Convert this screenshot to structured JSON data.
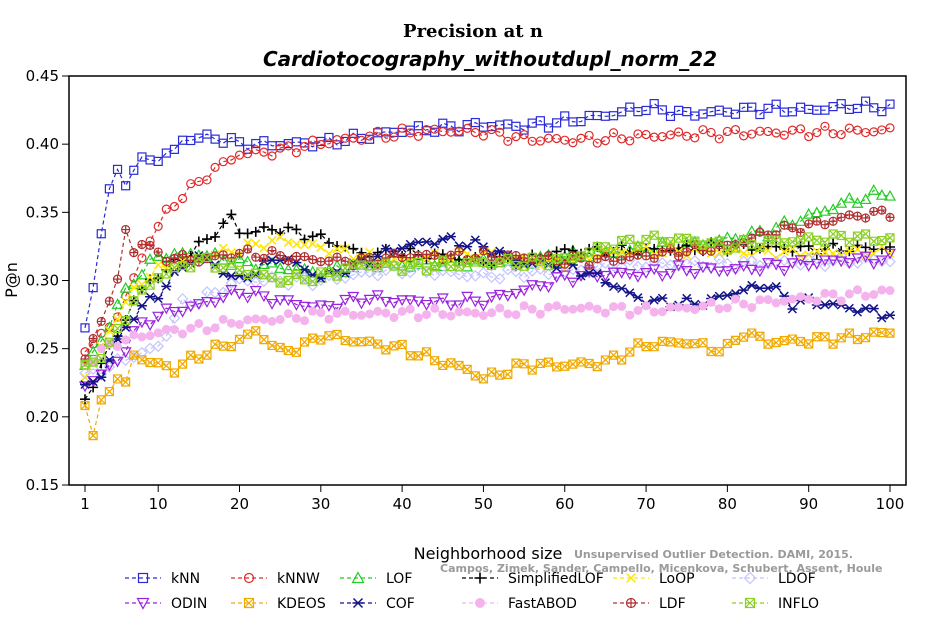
{
  "chart_data": {
    "type": "line",
    "title": "Precision at n",
    "subtitle": "Cardiotocography_withoutdupl_norm_22",
    "xlabel": "Neighborhood size",
    "ylabel": "P@n",
    "xlim": [
      1,
      100
    ],
    "ylim": [
      0.15,
      0.45
    ],
    "xticks": [
      1,
      10,
      20,
      30,
      40,
      50,
      60,
      70,
      80,
      90,
      100
    ],
    "yticks": [
      "0.15",
      "0.20",
      "0.25",
      "0.30",
      "0.35",
      "0.40",
      "0.45"
    ],
    "grid": false,
    "legend_position": "bottom",
    "watermark": [
      "Unsupervised Outlier Detection. DAMI, 2015.",
      "Campos, Zimek, Sander, Campello, Micenkova, Schubert, Assent, Houle"
    ],
    "x_step": 1,
    "series": [
      {
        "name": "kNN",
        "color": "#2a2ad6",
        "marker": "square",
        "keys": [
          [
            1,
            0.264
          ],
          [
            2,
            0.294
          ],
          [
            3,
            0.337
          ],
          [
            4,
            0.367
          ],
          [
            5,
            0.378
          ],
          [
            6,
            0.372
          ],
          [
            7,
            0.383
          ],
          [
            8,
            0.387
          ],
          [
            10,
            0.39
          ],
          [
            12,
            0.395
          ],
          [
            13,
            0.403
          ],
          [
            15,
            0.405
          ],
          [
            18,
            0.404
          ],
          [
            20,
            0.4
          ],
          [
            25,
            0.4
          ],
          [
            30,
            0.401
          ],
          [
            35,
            0.405
          ],
          [
            40,
            0.41
          ],
          [
            45,
            0.412
          ],
          [
            50,
            0.414
          ],
          [
            55,
            0.413
          ],
          [
            60,
            0.417
          ],
          [
            65,
            0.421
          ],
          [
            70,
            0.427
          ],
          [
            75,
            0.422
          ],
          [
            80,
            0.424
          ],
          [
            85,
            0.426
          ],
          [
            90,
            0.425
          ],
          [
            95,
            0.428
          ],
          [
            100,
            0.427
          ]
        ]
      },
      {
        "name": "kNNW",
        "color": "#e02b2b",
        "marker": "circle",
        "keys": [
          [
            1,
            0.251
          ],
          [
            3,
            0.258
          ],
          [
            5,
            0.275
          ],
          [
            7,
            0.301
          ],
          [
            9,
            0.331
          ],
          [
            11,
            0.349
          ],
          [
            13,
            0.363
          ],
          [
            15,
            0.372
          ],
          [
            17,
            0.382
          ],
          [
            19,
            0.389
          ],
          [
            20,
            0.393
          ],
          [
            25,
            0.395
          ],
          [
            30,
            0.401
          ],
          [
            35,
            0.405
          ],
          [
            40,
            0.408
          ],
          [
            45,
            0.41
          ],
          [
            50,
            0.409
          ],
          [
            55,
            0.404
          ],
          [
            60,
            0.403
          ],
          [
            65,
            0.404
          ],
          [
            70,
            0.406
          ],
          [
            80,
            0.408
          ],
          [
            90,
            0.409
          ],
          [
            100,
            0.41
          ]
        ]
      },
      {
        "name": "LOF",
        "color": "#22cc22",
        "marker": "triangle-up",
        "keys": [
          [
            1,
            0.238
          ],
          [
            3,
            0.255
          ],
          [
            5,
            0.282
          ],
          [
            7,
            0.3
          ],
          [
            10,
            0.318
          ],
          [
            15,
            0.32
          ],
          [
            20,
            0.313
          ],
          [
            25,
            0.31
          ],
          [
            30,
            0.305
          ],
          [
            35,
            0.312
          ],
          [
            40,
            0.311
          ],
          [
            45,
            0.313
          ],
          [
            50,
            0.314
          ],
          [
            55,
            0.314
          ],
          [
            60,
            0.318
          ],
          [
            65,
            0.32
          ],
          [
            70,
            0.323
          ],
          [
            75,
            0.326
          ],
          [
            80,
            0.33
          ],
          [
            85,
            0.336
          ],
          [
            90,
            0.347
          ],
          [
            95,
            0.358
          ],
          [
            100,
            0.365
          ]
        ]
      },
      {
        "name": "SimplifiedLOF",
        "color": "#000000",
        "marker": "plus",
        "keys": [
          [
            1,
            0.21
          ],
          [
            3,
            0.24
          ],
          [
            5,
            0.26
          ],
          [
            7,
            0.285
          ],
          [
            9,
            0.3
          ],
          [
            12,
            0.312
          ],
          [
            15,
            0.325
          ],
          [
            17,
            0.335
          ],
          [
            19,
            0.347
          ],
          [
            20,
            0.335
          ],
          [
            25,
            0.338
          ],
          [
            30,
            0.331
          ],
          [
            35,
            0.32
          ],
          [
            40,
            0.32
          ],
          [
            45,
            0.318
          ],
          [
            50,
            0.314
          ],
          [
            55,
            0.315
          ],
          [
            60,
            0.322
          ],
          [
            65,
            0.322
          ],
          [
            70,
            0.322
          ],
          [
            80,
            0.325
          ],
          [
            90,
            0.323
          ],
          [
            100,
            0.324
          ]
        ]
      },
      {
        "name": "LoOP",
        "color": "#ffe600",
        "marker": "x",
        "keys": [
          [
            1,
            0.23
          ],
          [
            3,
            0.25
          ],
          [
            5,
            0.275
          ],
          [
            8,
            0.3
          ],
          [
            10,
            0.308
          ],
          [
            15,
            0.317
          ],
          [
            20,
            0.323
          ],
          [
            25,
            0.33
          ],
          [
            30,
            0.324
          ],
          [
            35,
            0.318
          ],
          [
            40,
            0.314
          ],
          [
            45,
            0.318
          ],
          [
            50,
            0.32
          ],
          [
            55,
            0.315
          ],
          [
            60,
            0.312
          ],
          [
            65,
            0.32
          ],
          [
            70,
            0.322
          ],
          [
            80,
            0.321
          ],
          [
            90,
            0.32
          ],
          [
            100,
            0.321
          ]
        ]
      },
      {
        "name": "LDOF",
        "color": "#c4c4ff",
        "marker": "diamond",
        "keys": [
          [
            1,
            0.23
          ],
          [
            4,
            0.237
          ],
          [
            7,
            0.245
          ],
          [
            10,
            0.251
          ],
          [
            13,
            0.283
          ],
          [
            15,
            0.285
          ],
          [
            20,
            0.3
          ],
          [
            25,
            0.3
          ],
          [
            30,
            0.3
          ],
          [
            35,
            0.305
          ],
          [
            40,
            0.308
          ],
          [
            45,
            0.306
          ],
          [
            50,
            0.303
          ],
          [
            55,
            0.306
          ],
          [
            60,
            0.306
          ],
          [
            65,
            0.31
          ],
          [
            70,
            0.312
          ],
          [
            80,
            0.312
          ],
          [
            90,
            0.314
          ],
          [
            100,
            0.315
          ]
        ]
      },
      {
        "name": "ODIN",
        "color": "#9922dd",
        "marker": "triangle-down",
        "keys": [
          [
            1,
            0.223
          ],
          [
            3,
            0.232
          ],
          [
            5,
            0.24
          ],
          [
            7,
            0.262
          ],
          [
            10,
            0.275
          ],
          [
            15,
            0.282
          ],
          [
            20,
            0.292
          ],
          [
            25,
            0.285
          ],
          [
            30,
            0.28
          ],
          [
            35,
            0.287
          ],
          [
            40,
            0.285
          ],
          [
            45,
            0.284
          ],
          [
            50,
            0.285
          ],
          [
            55,
            0.293
          ],
          [
            60,
            0.302
          ],
          [
            65,
            0.305
          ],
          [
            70,
            0.305
          ],
          [
            75,
            0.308
          ],
          [
            80,
            0.308
          ],
          [
            85,
            0.31
          ],
          [
            90,
            0.313
          ],
          [
            95,
            0.315
          ],
          [
            100,
            0.316
          ]
        ]
      },
      {
        "name": "KDEOS",
        "color": "#f0aa00",
        "marker": "square-x",
        "keys": [
          [
            1,
            0.212
          ],
          [
            2,
            0.184
          ],
          [
            3,
            0.21
          ],
          [
            4,
            0.222
          ],
          [
            5,
            0.228
          ],
          [
            6,
            0.223
          ],
          [
            7,
            0.246
          ],
          [
            9,
            0.24
          ],
          [
            12,
            0.235
          ],
          [
            15,
            0.245
          ],
          [
            18,
            0.252
          ],
          [
            20,
            0.256
          ],
          [
            22,
            0.263
          ],
          [
            25,
            0.248
          ],
          [
            28,
            0.252
          ],
          [
            30,
            0.26
          ],
          [
            35,
            0.255
          ],
          [
            40,
            0.25
          ],
          [
            45,
            0.24
          ],
          [
            48,
            0.235
          ],
          [
            50,
            0.228
          ],
          [
            52,
            0.232
          ],
          [
            55,
            0.238
          ],
          [
            60,
            0.238
          ],
          [
            65,
            0.24
          ],
          [
            68,
            0.248
          ],
          [
            70,
            0.253
          ],
          [
            75,
            0.255
          ],
          [
            78,
            0.25
          ],
          [
            80,
            0.25
          ],
          [
            82,
            0.262
          ],
          [
            85,
            0.255
          ],
          [
            90,
            0.256
          ],
          [
            95,
            0.258
          ],
          [
            100,
            0.262
          ]
        ]
      },
      {
        "name": "COF",
        "color": "#141488",
        "marker": "asterisk",
        "keys": [
          [
            1,
            0.222
          ],
          [
            3,
            0.23
          ],
          [
            5,
            0.255
          ],
          [
            7,
            0.275
          ],
          [
            10,
            0.29
          ],
          [
            13,
            0.31
          ],
          [
            15,
            0.318
          ],
          [
            20,
            0.3
          ],
          [
            25,
            0.318
          ],
          [
            30,
            0.302
          ],
          [
            35,
            0.313
          ],
          [
            40,
            0.325
          ],
          [
            45,
            0.33
          ],
          [
            50,
            0.325
          ],
          [
            55,
            0.313
          ],
          [
            60,
            0.312
          ],
          [
            65,
            0.3
          ],
          [
            68,
            0.29
          ],
          [
            70,
            0.285
          ],
          [
            75,
            0.283
          ],
          [
            78,
            0.285
          ],
          [
            80,
            0.29
          ],
          [
            85,
            0.297
          ],
          [
            88,
            0.283
          ],
          [
            90,
            0.285
          ],
          [
            95,
            0.28
          ],
          [
            100,
            0.275
          ]
        ]
      },
      {
        "name": "FastABOD",
        "color": "#f5b3ee",
        "marker": "circle-filled",
        "keys": [
          [
            1,
            0.24
          ],
          [
            5,
            0.255
          ],
          [
            10,
            0.262
          ],
          [
            15,
            0.265
          ],
          [
            20,
            0.27
          ],
          [
            25,
            0.272
          ],
          [
            30,
            0.275
          ],
          [
            40,
            0.276
          ],
          [
            50,
            0.276
          ],
          [
            60,
            0.28
          ],
          [
            70,
            0.278
          ],
          [
            80,
            0.282
          ],
          [
            90,
            0.287
          ],
          [
            100,
            0.292
          ]
        ]
      },
      {
        "name": "LDF",
        "color": "#b03030",
        "marker": "circle-plus",
        "keys": [
          [
            1,
            0.242
          ],
          [
            3,
            0.27
          ],
          [
            5,
            0.302
          ],
          [
            6,
            0.335
          ],
          [
            7,
            0.32
          ],
          [
            8,
            0.33
          ],
          [
            10,
            0.318
          ],
          [
            15,
            0.315
          ],
          [
            20,
            0.32
          ],
          [
            25,
            0.318
          ],
          [
            30,
            0.315
          ],
          [
            35,
            0.314
          ],
          [
            40,
            0.318
          ],
          [
            45,
            0.318
          ],
          [
            50,
            0.318
          ],
          [
            55,
            0.317
          ],
          [
            60,
            0.315
          ],
          [
            65,
            0.315
          ],
          [
            70,
            0.318
          ],
          [
            75,
            0.322
          ],
          [
            80,
            0.325
          ],
          [
            85,
            0.335
          ],
          [
            90,
            0.34
          ],
          [
            95,
            0.347
          ],
          [
            100,
            0.35
          ]
        ]
      },
      {
        "name": "INFLO",
        "color": "#8ad021",
        "marker": "square-x",
        "keys": [
          [
            1,
            0.235
          ],
          [
            4,
            0.252
          ],
          [
            7,
            0.285
          ],
          [
            10,
            0.303
          ],
          [
            15,
            0.315
          ],
          [
            20,
            0.308
          ],
          [
            25,
            0.3
          ],
          [
            30,
            0.303
          ],
          [
            35,
            0.312
          ],
          [
            40,
            0.31
          ],
          [
            45,
            0.311
          ],
          [
            50,
            0.313
          ],
          [
            55,
            0.313
          ],
          [
            60,
            0.315
          ],
          [
            65,
            0.325
          ],
          [
            70,
            0.33
          ],
          [
            75,
            0.33
          ],
          [
            80,
            0.325
          ],
          [
            85,
            0.328
          ],
          [
            90,
            0.33
          ],
          [
            95,
            0.332
          ],
          [
            100,
            0.33
          ]
        ]
      }
    ]
  }
}
